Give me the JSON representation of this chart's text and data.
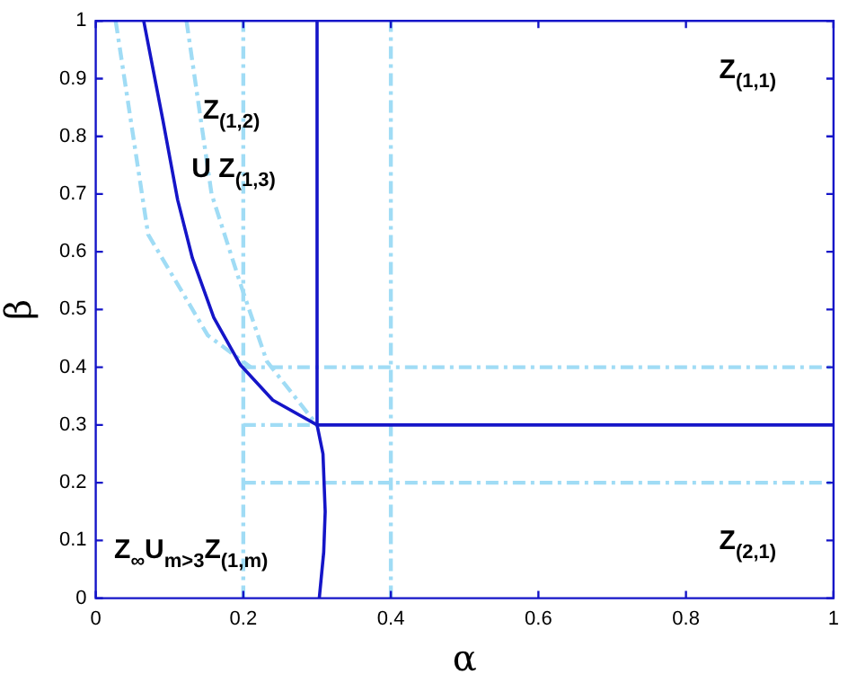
{
  "chart_data": {
    "type": "line",
    "xlabel": "α",
    "ylabel": "β",
    "xlim": [
      0,
      1
    ],
    "ylim": [
      0,
      1
    ],
    "xticks": [
      0,
      0.2,
      0.4,
      0.6,
      0.8,
      1
    ],
    "yticks": [
      0,
      0.1,
      0.2,
      0.3,
      0.4,
      0.5,
      0.6,
      0.7,
      0.8,
      0.9,
      1
    ],
    "grid": false,
    "legend": false,
    "marker": "none",
    "series": [
      {
        "color": "#1515c8",
        "line_style": "solid",
        "x": [
          0.065,
          0.091,
          0.111,
          0.131,
          0.16,
          0.196,
          0.24,
          0.3
        ],
        "values": [
          1,
          0.828,
          0.69,
          0.589,
          0.486,
          0.404,
          0.343,
          0.3
        ]
      },
      {
        "color": "#1515c8",
        "line_style": "solid",
        "x": [
          0.303,
          0.309,
          0.311,
          0.308,
          0.3,
          0.3
        ],
        "values": [
          0,
          0.08,
          0.15,
          0.25,
          0.3,
          1
        ]
      },
      {
        "color": "#1515c8",
        "line_style": "solid",
        "x": [
          0.3,
          1
        ],
        "values": [
          0.3,
          0.3
        ]
      },
      {
        "color": "#a0dcf5",
        "line_style": "dashed",
        "x": [
          0.2,
          0.2
        ],
        "values": [
          0,
          1
        ]
      },
      {
        "color": "#a0dcf5",
        "line_style": "dashed",
        "x": [
          0.4,
          0.4
        ],
        "values": [
          0,
          1
        ]
      },
      {
        "color": "#a0dcf5",
        "line_style": "dashed",
        "x": [
          0.2,
          1
        ],
        "values": [
          0.4,
          0.4
        ]
      },
      {
        "color": "#a0dcf5",
        "line_style": "dashed",
        "x": [
          0.2,
          0.3
        ],
        "values": [
          0.3,
          0.3
        ]
      },
      {
        "color": "#a0dcf5",
        "line_style": "dashed",
        "x": [
          0.2,
          1
        ],
        "values": [
          0.2,
          0.2
        ]
      },
      {
        "color": "#a0dcf5",
        "line_style": "dashed",
        "x": [
          0.027,
          0.071,
          0.152,
          0.21
        ],
        "values": [
          1,
          0.63,
          0.455,
          0.4
        ]
      },
      {
        "color": "#a0dcf5",
        "line_style": "dashed",
        "x": [
          0.123,
          0.157,
          0.198,
          0.232,
          0.3
        ],
        "values": [
          1,
          0.7,
          0.537,
          0.41,
          0.3
        ]
      }
    ],
    "annotations": [
      "Z$_{(1,1)}$",
      "Z$_{(1,2)}$",
      "U Z$_{(1,3)}$",
      "Z$_{∞}$U$_{m>3}$Z$_{(1,m)}$",
      "Z$_{(2,1)}$"
    ]
  }
}
